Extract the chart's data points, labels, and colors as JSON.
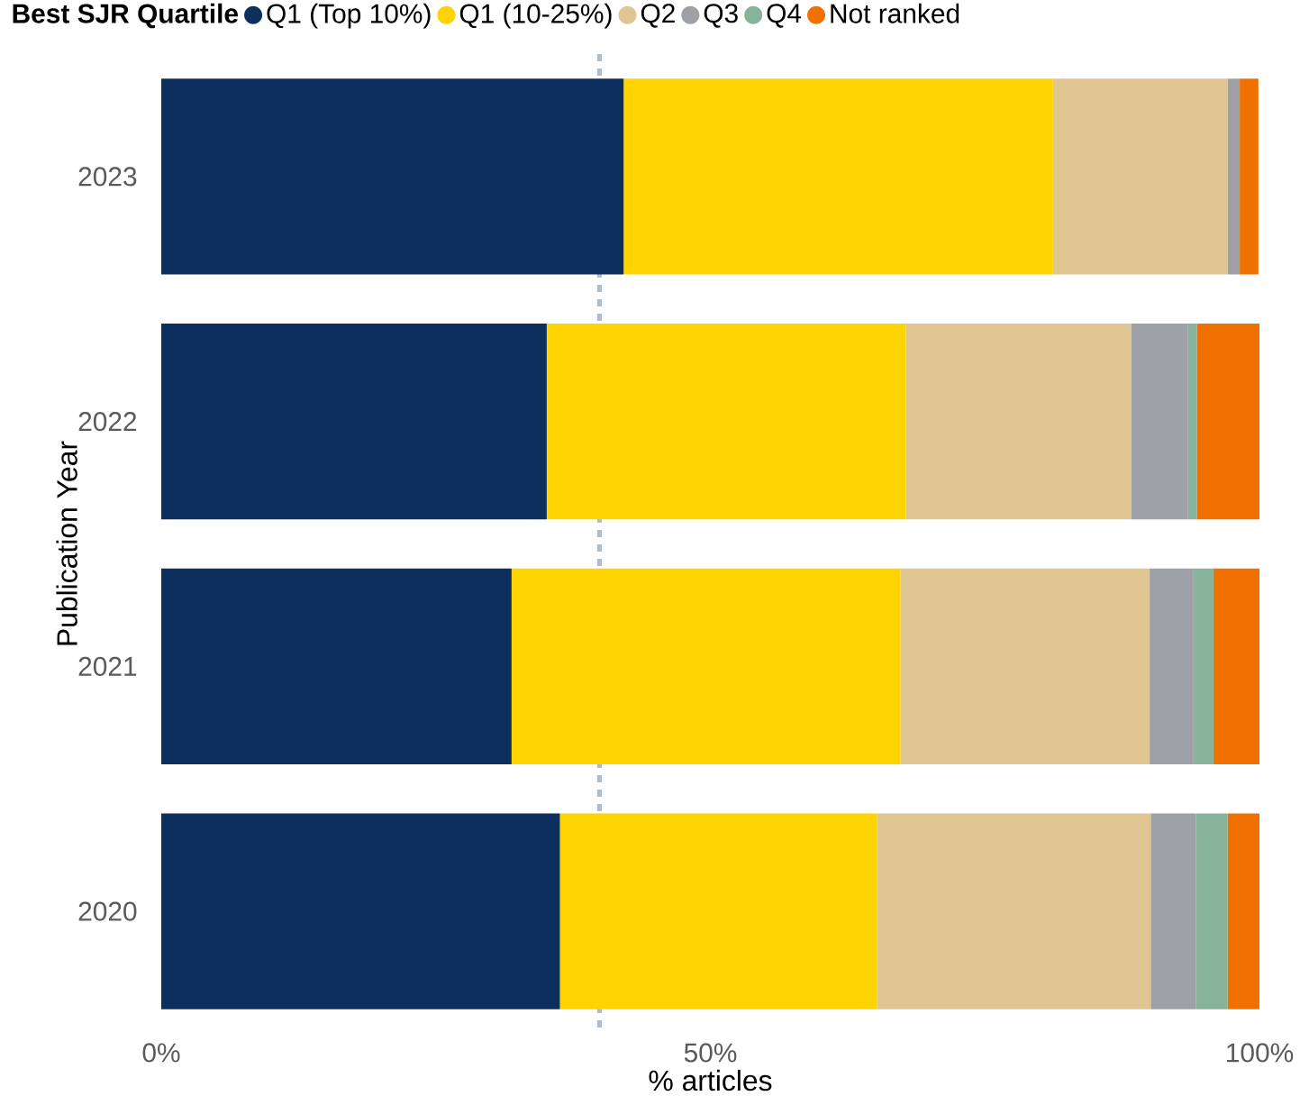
{
  "chart_data": {
    "type": "bar",
    "orientation": "horizontal",
    "stacked": true,
    "xlabel": "% articles",
    "ylabel": "Publication Year",
    "legend_title": "Best SJR Quartile",
    "categories": [
      "2023",
      "2022",
      "2021",
      "2020"
    ],
    "series": [
      {
        "name": "Q1 (Top 10%)",
        "color": "#0d2f5e",
        "values": [
          42.1,
          35.1,
          31.9,
          36.3
        ]
      },
      {
        "name": "Q1 (10-25%)",
        "color": "#fdd400",
        "values": [
          39.1,
          32.7,
          35.4,
          28.9
        ]
      },
      {
        "name": "Q2",
        "color": "#dec591",
        "values": [
          15.9,
          20.5,
          22.7,
          24.9
        ]
      },
      {
        "name": "Q3",
        "color": "#9da0a5",
        "values": [
          1.1,
          5.2,
          4.0,
          4.1
        ]
      },
      {
        "name": "Q4",
        "color": "#86b39a",
        "values": [
          0,
          0.8,
          1.8,
          2.9
        ]
      },
      {
        "name": "Not ranked",
        "color": "#f07000",
        "values": [
          1.7,
          5.7,
          4.2,
          2.9
        ]
      }
    ],
    "xlim": [
      0,
      100
    ],
    "xticks": [
      {
        "value": 0,
        "label": "0%"
      },
      {
        "value": 50,
        "label": "50%"
      },
      {
        "value": 100,
        "label": "100%"
      }
    ],
    "ref_lines": [
      {
        "axis": "x",
        "value": 39.9,
        "color": "#a9bcd6",
        "line_style": "dashed"
      }
    ],
    "legend": "top"
  }
}
